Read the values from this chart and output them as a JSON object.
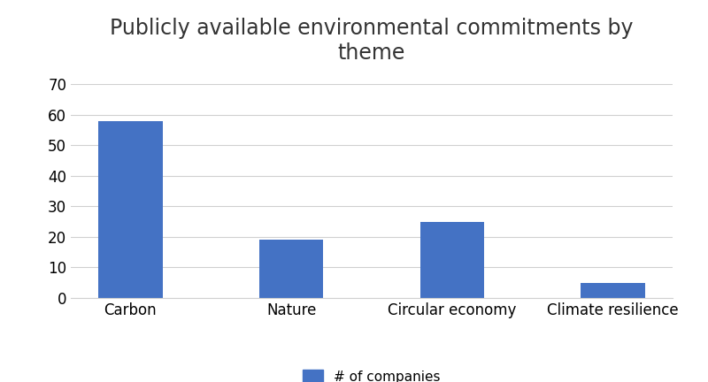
{
  "title": "Publicly available environmental commitments by\ntheme",
  "categories": [
    "Carbon",
    "Nature",
    "Circular economy",
    "Climate resilience"
  ],
  "values": [
    58,
    19,
    25,
    5
  ],
  "bar_color": "#4472C4",
  "ylim": [
    0,
    70
  ],
  "yticks": [
    0,
    10,
    20,
    30,
    40,
    50,
    60,
    70
  ],
  "legend_label": "# of companies",
  "title_fontsize": 17,
  "tick_fontsize": 12,
  "legend_fontsize": 11,
  "background_color": "#ffffff",
  "grid_color": "#d0d0d0",
  "bar_width": 0.4
}
